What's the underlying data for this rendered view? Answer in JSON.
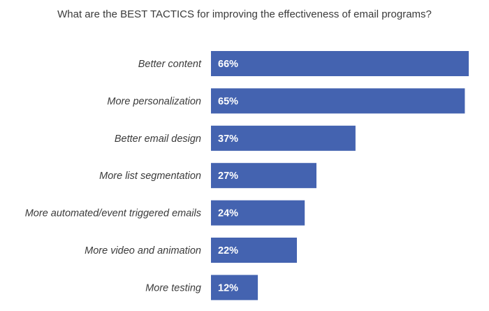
{
  "chart_data": {
    "type": "bar",
    "orientation": "horizontal",
    "title": "What are the BEST TACTICS for improving the effectiveness of email programs?",
    "xlabel": "",
    "ylabel": "",
    "categories": [
      "Better content",
      "More personalization",
      "Better email design",
      "More list segmentation",
      "More automated/event triggered emails",
      "More video and animation",
      "More testing"
    ],
    "values": [
      66,
      65,
      37,
      27,
      24,
      22,
      12
    ],
    "value_labels": [
      "66%",
      "65%",
      "37%",
      "27%",
      "24%",
      "22%",
      "12%"
    ],
    "xlim": [
      0,
      66
    ],
    "grid": false,
    "legend": "none",
    "colors": {
      "bar": "#4463B0",
      "value_text": "#ffffff",
      "category_text": "#3a3a3a"
    }
  }
}
